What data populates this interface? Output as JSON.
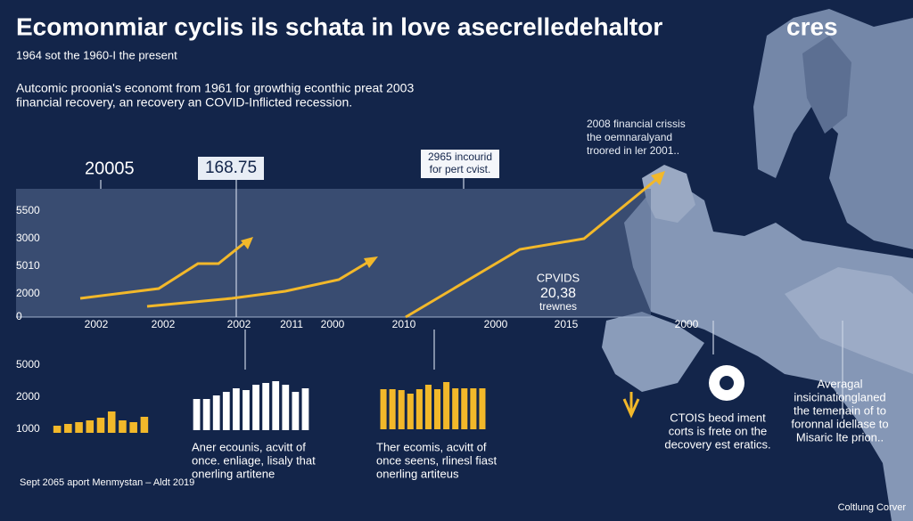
{
  "title": "Ecomonmiar cyclis ils schata in love asecrelledehaltor",
  "title_suffix": "cres",
  "subtitle": "1964 sot the 1960-I the present",
  "description": [
    "Autcomic proonia's economt from 1961 for growthig econthic preat 2003",
    "financial recovery, an recovery an COVID-Inflicted recession."
  ],
  "callouts": {
    "left_value": "20005",
    "boxed_value": "168.75",
    "boxed_note": [
      "2965 incourid",
      "for pert cvist."
    ],
    "crisis_note": [
      "2008 financial crissis",
      "the oemnaralyand",
      "troored in ler 2001.."
    ],
    "covid_note": [
      "CPVIDS",
      "20,38",
      "trewnes"
    ]
  },
  "top_axis": {
    "y_labels": [
      "5500",
      "3000",
      "5010",
      "2000",
      "0"
    ],
    "x_labels": [
      "2002",
      "2002",
      "2002",
      "2011",
      "2000",
      "2010",
      "2000",
      "2015",
      "2000"
    ]
  },
  "bottom_axis": {
    "y_labels": [
      "5000",
      "2000",
      "1000"
    ]
  },
  "bar_panels": [
    {
      "color": "#f2b82a",
      "values": [
        8,
        10,
        12,
        14,
        17,
        24,
        14,
        12,
        18
      ]
    },
    {
      "color": "#ffffff",
      "values": [
        35,
        35,
        39,
        43,
        47,
        45,
        51,
        53,
        55,
        51,
        43,
        47
      ]
    },
    {
      "color": "#f2b82a",
      "values": [
        45,
        45,
        44,
        40,
        45,
        50,
        45,
        53,
        46,
        46,
        46,
        46
      ]
    }
  ],
  "captions": [
    [
      "Aner ecounis, acvitt of",
      "once. enliage, lisaly that",
      "onerling artitene"
    ],
    [
      "Ther ecomis, acvitt of",
      "once seens, rlinesl fiast",
      "onerling artiteus"
    ],
    [
      "CTOIS beod iment",
      "corts is frete on the",
      "decovery est eratics."
    ],
    [
      "Averagal",
      "insicinationglaned",
      "the temenain of to",
      "foronnal idellase to",
      "Misaric lte prion.."
    ]
  ],
  "footer": {
    "left": "Sept 2065 aport Menmystan – Aldt 2019",
    "right": "Coltlung Corver"
  }
}
